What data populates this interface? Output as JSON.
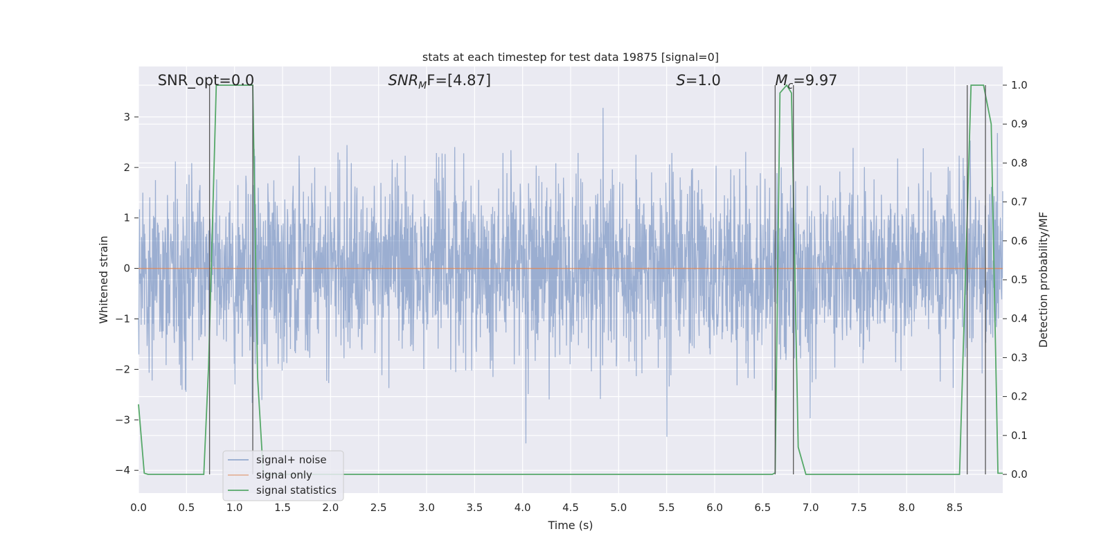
{
  "chart_data": {
    "type": "line",
    "title": "stats at each timestep for test data 19875 [signal=0]",
    "xlabel": "Time (s)",
    "ylabel": "Whitened strain",
    "y2label": "Detection probability/MF",
    "xlim": [
      0.0,
      9.0
    ],
    "ylim": [
      -4.45,
      4.0
    ],
    "y2lim": [
      -0.048,
      1.048
    ],
    "x_ticks": [
      0.0,
      0.5,
      1.0,
      1.5,
      2.0,
      2.5,
      3.0,
      3.5,
      4.0,
      4.5,
      5.0,
      5.5,
      6.0,
      6.5,
      7.0,
      7.5,
      8.0,
      8.5
    ],
    "x_tick_labels": [
      "0.0",
      "0.5",
      "1.0",
      "1.5",
      "2.0",
      "2.5",
      "3.0",
      "3.5",
      "4.0",
      "4.5",
      "5.0",
      "5.5",
      "6.0",
      "6.5",
      "7.0",
      "7.5",
      "8.0",
      "8.5"
    ],
    "y_ticks": [
      -4,
      -3,
      -2,
      -1,
      0,
      1,
      2,
      3
    ],
    "y_tick_labels": [
      "−4",
      "−3",
      "−2",
      "−1",
      "0",
      "1",
      "2",
      "3"
    ],
    "y2_ticks": [
      0.0,
      0.1,
      0.2,
      0.3,
      0.4,
      0.5,
      0.6,
      0.7,
      0.8,
      0.9,
      1.0
    ],
    "y2_tick_labels": [
      "0.0",
      "0.1",
      "0.2",
      "0.3",
      "0.4",
      "0.5",
      "0.6",
      "0.7",
      "0.8",
      "0.9",
      "1.0"
    ],
    "grid": true,
    "legend_position": "lower-left",
    "annotations": [
      {
        "x": 0.2,
        "pre": "SNR_opt=0.0",
        "sub": "",
        "post": "",
        "italic": false
      },
      {
        "x": 2.6,
        "pre": "SNR",
        "sub": "M",
        "post": "F=[4.87]",
        "italic": true
      },
      {
        "x": 5.6,
        "pre": "S",
        "sub": "",
        "post": "=1.0",
        "italic": true
      },
      {
        "x": 6.63,
        "pre": "M",
        "sub": "c",
        "post": "=9.97",
        "italic": true
      }
    ],
    "series": [
      {
        "name": "signal+ noise",
        "color": "#4c72b0",
        "style": "noise",
        "amplitude_sd": 0.9,
        "x_range": [
          0.0,
          9.0
        ]
      },
      {
        "name": "signal only",
        "color": "#dd8452",
        "style": "flat",
        "x": [
          0.0,
          9.0
        ],
        "y": [
          0.0,
          0.0
        ]
      },
      {
        "name": "signal statistics",
        "color": "#55a868",
        "axis": "right",
        "x": [
          0.0,
          0.06,
          0.1,
          0.68,
          0.73,
          0.81,
          1.19,
          1.24,
          1.3,
          6.6,
          6.63,
          6.68,
          6.75,
          6.8,
          6.87,
          6.95,
          8.55,
          8.62,
          8.67,
          8.8,
          8.88,
          8.95,
          9.0
        ],
        "y": [
          0.18,
          0.003,
          0.0,
          0.0,
          0.28,
          1.0,
          1.0,
          0.25,
          0.0,
          0.0,
          0.004,
          0.98,
          1.0,
          0.98,
          0.07,
          0.0,
          0.0,
          0.58,
          1.0,
          1.0,
          0.9,
          0.003,
          0.003
        ]
      }
    ],
    "event_markers": {
      "color": "#555555",
      "y2_range": [
        0.0,
        1.0
      ],
      "x": [
        0.74,
        1.19,
        6.63,
        6.82,
        8.63,
        8.82
      ]
    }
  }
}
